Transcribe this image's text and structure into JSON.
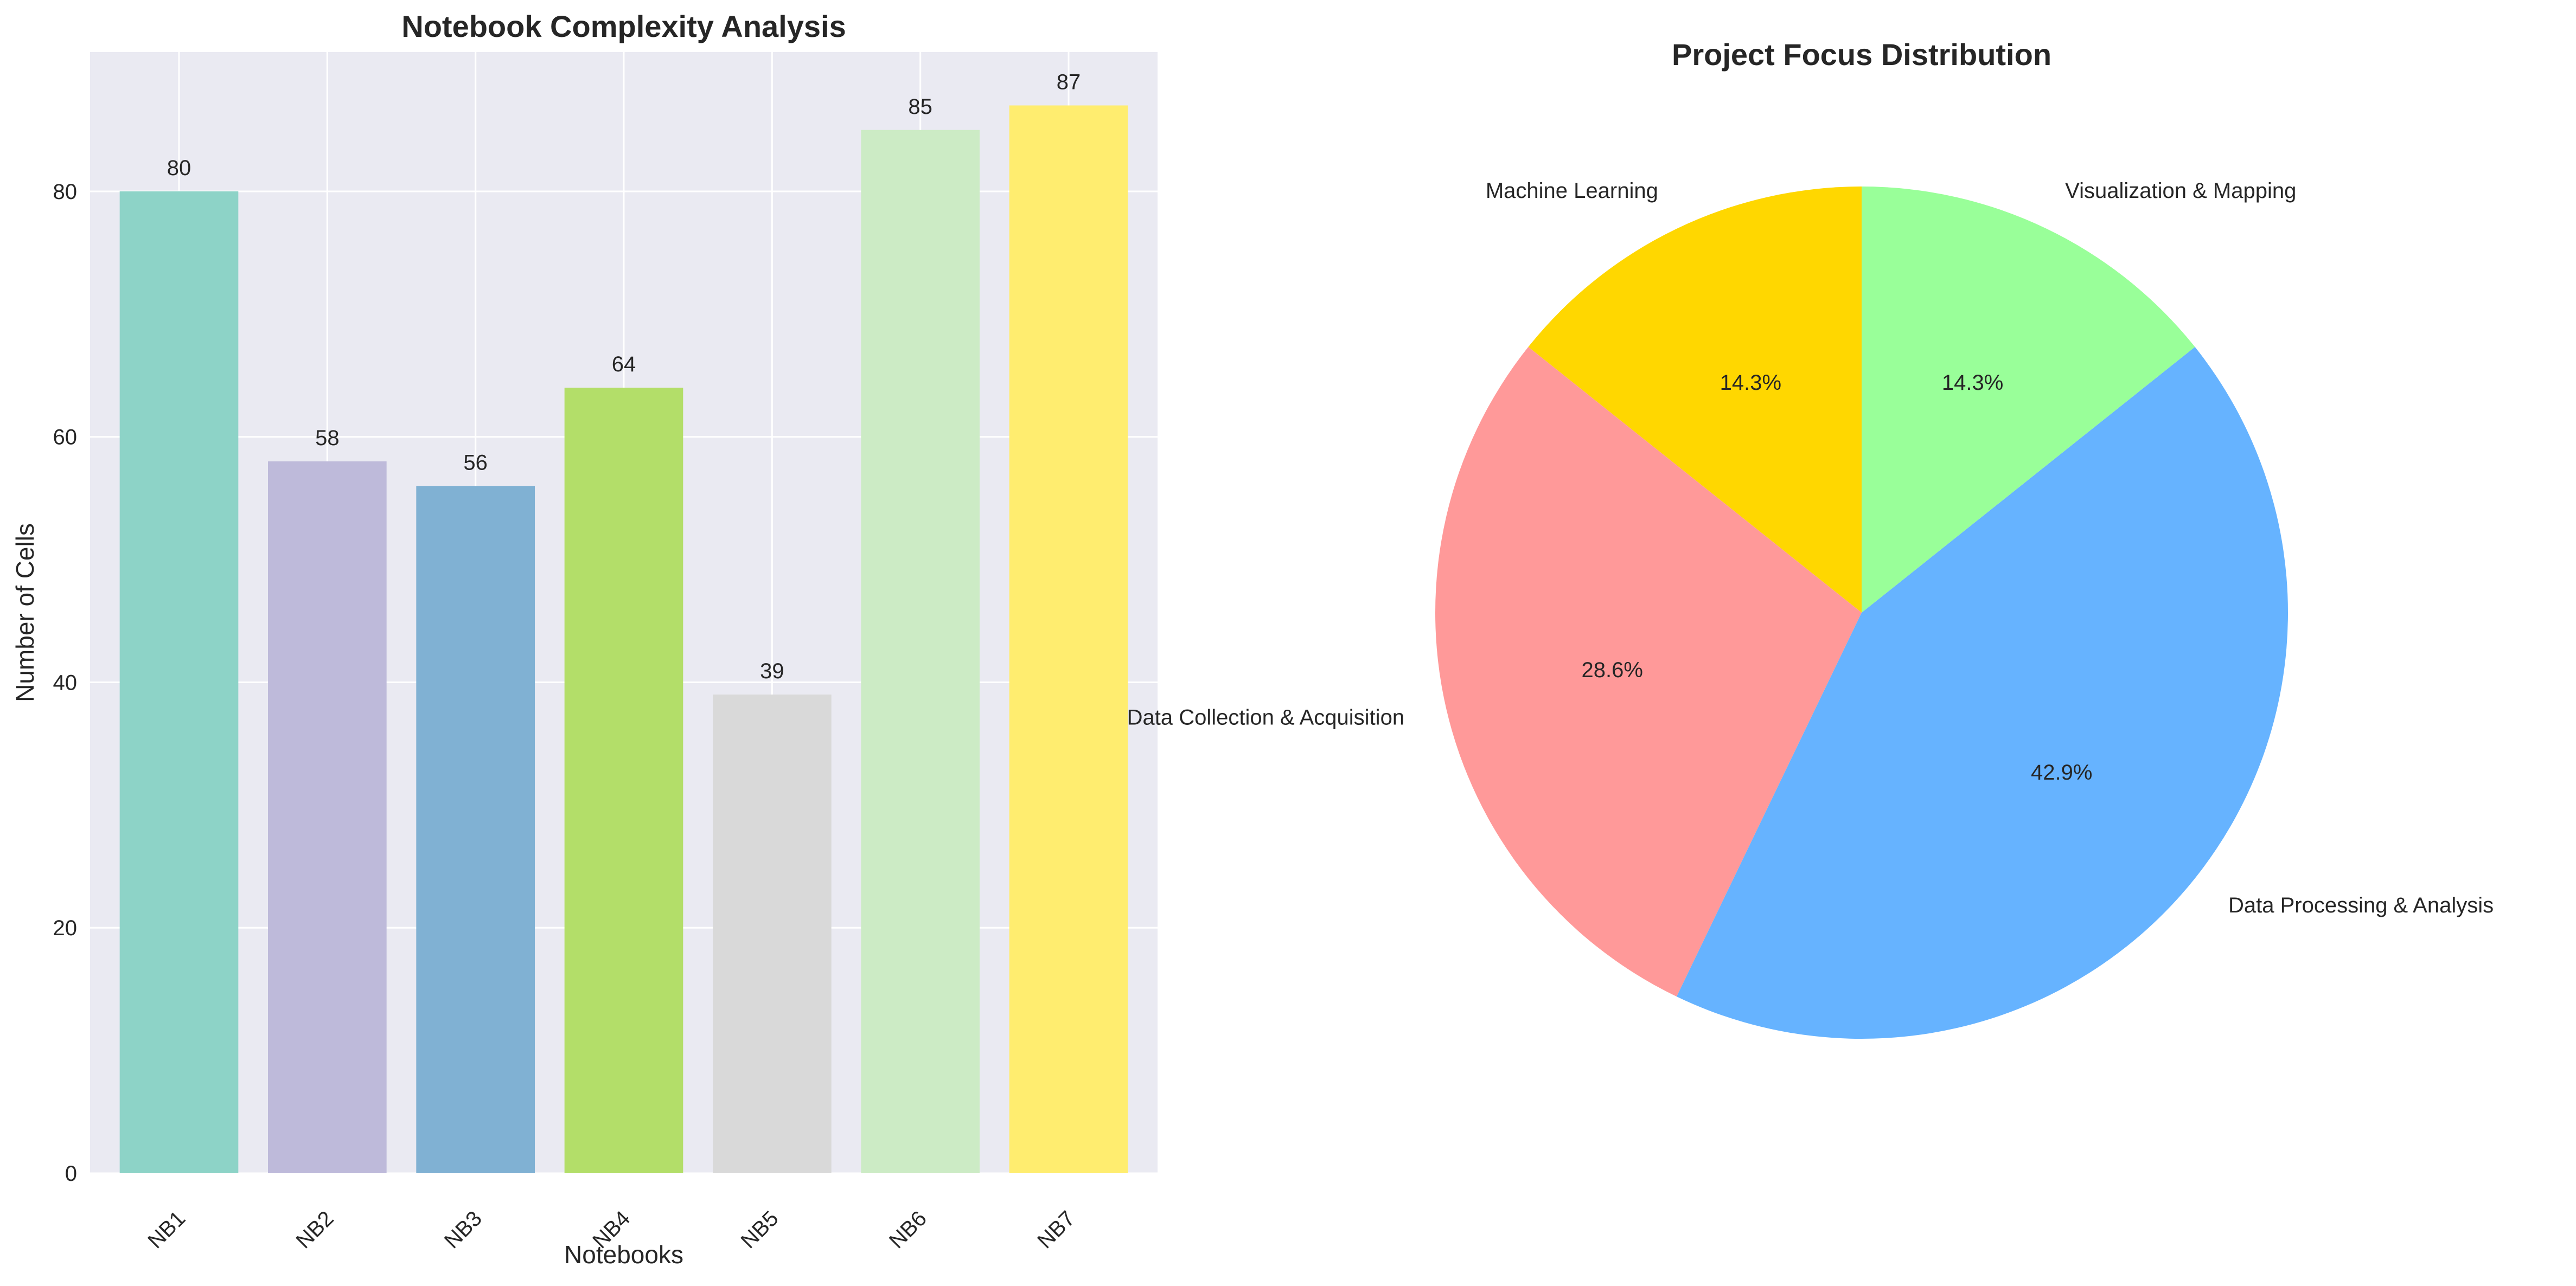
{
  "chart_data": [
    {
      "type": "bar",
      "title": "Notebook Complexity Analysis",
      "xlabel": "Notebooks",
      "ylabel": "Number of Cells",
      "categories": [
        "NB1",
        "NB2",
        "NB3",
        "NB4",
        "NB5",
        "NB6",
        "NB7"
      ],
      "values": [
        80,
        58,
        56,
        64,
        39,
        85,
        87
      ],
      "data_labels": [
        "80",
        "58",
        "56",
        "64",
        "39",
        "85",
        "87"
      ],
      "colors": [
        "#8dd3c7",
        "#bebada",
        "#80b1d3",
        "#b3de69",
        "#d9d9d9",
        "#ccebc5",
        "#ffed6f"
      ],
      "ylim": [
        0,
        91.35
      ],
      "yticks": [
        0,
        20,
        40,
        60,
        80
      ],
      "ytick_labels": [
        "0",
        "20",
        "40",
        "60",
        "80"
      ],
      "grid": true,
      "background": "#eaeaf2"
    },
    {
      "type": "pie",
      "title": "Project Focus Distribution",
      "labels": [
        "Machine Learning",
        "Data Collection & Acquisition",
        "Data Processing & Analysis",
        "Visualization & Mapping"
      ],
      "values": [
        14.3,
        28.6,
        42.9,
        14.3
      ],
      "pct_labels": [
        "14.3%",
        "28.6%",
        "42.9%",
        "14.3%"
      ],
      "colors": [
        "#ffd700",
        "#ff9999",
        "#66b3ff",
        "#99ff99"
      ],
      "direction": "counterclockwise",
      "start_angle": "top"
    }
  ]
}
